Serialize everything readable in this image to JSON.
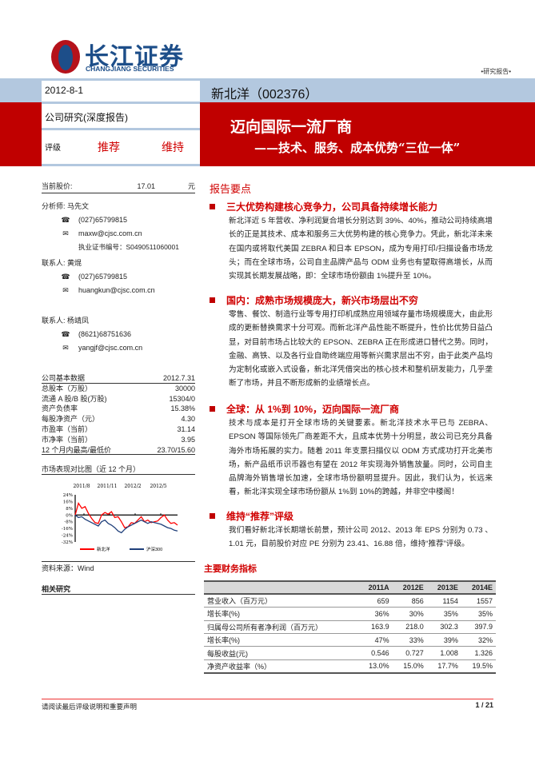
{
  "header": {
    "logo_cn": "长江证券",
    "logo_en": "CHANGJIANG SECURITIES",
    "doc_type": "•研究报告•",
    "date": "2012-8-1",
    "category": "公司研究(深度报告)",
    "rating_label": "评级",
    "rating": "推荐",
    "rating_change": "维持",
    "stock": "新北洋（002376）",
    "title": "迈向国际一流厂商",
    "subtitle": "——技术、服务、成本优势“三位一体”"
  },
  "price": {
    "label": "当前股价:",
    "value": "17.01",
    "unit": "元"
  },
  "contacts": [
    {
      "role": "分析师:",
      "name": "马先文",
      "phone": "(027)65799815",
      "email": "maxw@cjsc.com.cn",
      "cert": "执业证书编号：S0490511060001"
    },
    {
      "role": "联系人:",
      "name": "黄焜",
      "phone": "(027)65799815",
      "email": "huangkun@cjsc.com.cn"
    },
    {
      "role": "联系人:",
      "name": "杨靖凤",
      "phone": "(8621)68751636",
      "email": "yangjf@cjsc.com.cn"
    }
  ],
  "basic": {
    "title": "公司基本数据",
    "date": "2012.7.31",
    "rows": [
      [
        "总股本（万股）",
        "30000"
      ],
      [
        "流通 A 股/B 股(万股)",
        "15304/0"
      ],
      [
        "资产负债率",
        "15.38%"
      ],
      [
        "每股净资产（元）",
        "4.30"
      ],
      [
        "市盈率（当前）",
        "31.14"
      ],
      [
        "市净率（当前）",
        "3.95"
      ],
      [
        "12 个月内最高/最低价",
        "23.70/15.60"
      ]
    ]
  },
  "chart_title": "市场表现对比图（近 12 个月）",
  "chart_data": {
    "type": "line",
    "x_ticks": [
      "2011/8",
      "2011/11",
      "2012/2",
      "2012/5"
    ],
    "y_ticks": [
      "24%",
      "16%",
      "8%",
      "0%",
      "-8%",
      "-16%",
      "-24%",
      "-32%"
    ],
    "ylim": [
      -32,
      24
    ],
    "series": [
      {
        "name": "新北洋",
        "color": "#ff0000",
        "values": [
          0,
          14,
          8,
          10,
          2,
          -4,
          -9,
          -10,
          0,
          3,
          1,
          4,
          -3,
          -2,
          -8,
          -15,
          -14,
          -9,
          -10,
          -6,
          -2,
          -8,
          -6,
          -9,
          -8,
          -7,
          -3,
          0,
          -6,
          -10,
          -9,
          -12
        ]
      },
      {
        "name": "沪深300",
        "color": "#1f3f7a",
        "values": [
          0,
          -3,
          -2,
          -5,
          -7,
          -9,
          -11,
          -13,
          -8,
          -6,
          -10,
          -12,
          -15,
          -19,
          -21,
          -17,
          -14,
          -12,
          -10,
          -8,
          -6,
          -8,
          -10,
          -8,
          -9,
          -10,
          -11,
          -13,
          -15,
          -16,
          -18,
          -19
        ]
      }
    ],
    "legend": "bottom"
  },
  "source": "资料来源：Wind",
  "related": "相关研究",
  "summary": {
    "title": "报告要点",
    "sections": [
      {
        "heading": "三大优势构建核心竞争力，公司具备持续增长能力",
        "text": "新北洋近 5 年营收、净利润复合增长分别达到 39%、40%，推动公司持续高增长的正是其技术、成本和服务三大优势构建的核心竞争力。凭此，新北洋未来在国内或将取代美国 ZEBRA 和日本 EPSON，成为专用打印/扫描设备市场龙头；而在全球市场，公司自主品牌产品与 ODM 业务也有望取得高增长，从而实现其长期发展战略，即：全球市场份额由 1%提升至 10%。"
      },
      {
        "heading": "国内：成熟市场规模庞大，新兴市场层出不穷",
        "text": "零售、餐饮、制造行业等专用打印机成熟应用领域存量市场规模庞大，由此形成的更新替换需求十分可观。而新北洋产品性能不断提升，性价比优势日益凸显，对目前市场占比较大的 EPSON、ZEBRA 正在形成进口替代之势。同时，金融、高铁、以及各行业自助终端应用等新兴需求层出不穷，由于此类产品均为定制化或嵌入式设备，新北洋凭借突出的核心技术和整机研发能力，几乎垄断了市场，并且不断形成新的业绩增长点。"
      },
      {
        "heading": "全球：从 1%到 10%，迈向国际一流厂商",
        "text": "技术与成本是打开全球市场的关键要素。新北洋技术水平已与 ZEBRA、EPSON 等国际领先厂商差距不大，且成本优势十分明显，故公司已充分具备海外市场拓展的实力。随着 2011 年支票扫描仪以 ODM 方式成功打开北美市场，新产品纸币识币器也有望在 2012 年实现海外销售放量。同时，公司自主品牌海外销售增长加速，全球市场份额明显提升。因此，我们认为，长远来看，新北洋实现全球市场份额从 1%到 10%的跨越，并非空中楼阁！"
      },
      {
        "heading": "维持“推荐”评级",
        "text": "我们看好新北洋长期增长前景，预计公司 2012、2013 年 EPS 分别为 0.73 、1.01 元，目前股价对应 PE 分别为 23.41、16.88 倍，维持“推荐”评级。"
      }
    ]
  },
  "financials": {
    "title": "主要财务指标",
    "columns": [
      "",
      "2011A",
      "2012E",
      "2013E",
      "2014E"
    ],
    "rows": [
      [
        "营业收入（百万元）",
        "659",
        "856",
        "1154",
        "1557"
      ],
      [
        "增长率(%)",
        "36%",
        "30%",
        "35%",
        "35%"
      ],
      [
        "归属母公司所有者净利润（百万元）",
        "163.9",
        "218.0",
        "302.3",
        "397.9"
      ],
      [
        "增长率(%)",
        "47%",
        "33%",
        "39%",
        "32%"
      ],
      [
        "每股收益(元)",
        "0.546",
        "0.727",
        "1.008",
        "1.326"
      ],
      [
        "净资产收益率（%）",
        "13.0%",
        "15.0%",
        "17.7%",
        "19.5%"
      ]
    ]
  },
  "footer": {
    "disclaimer": "请阅读最后评级说明和重要声明",
    "page": "1 / 21"
  }
}
